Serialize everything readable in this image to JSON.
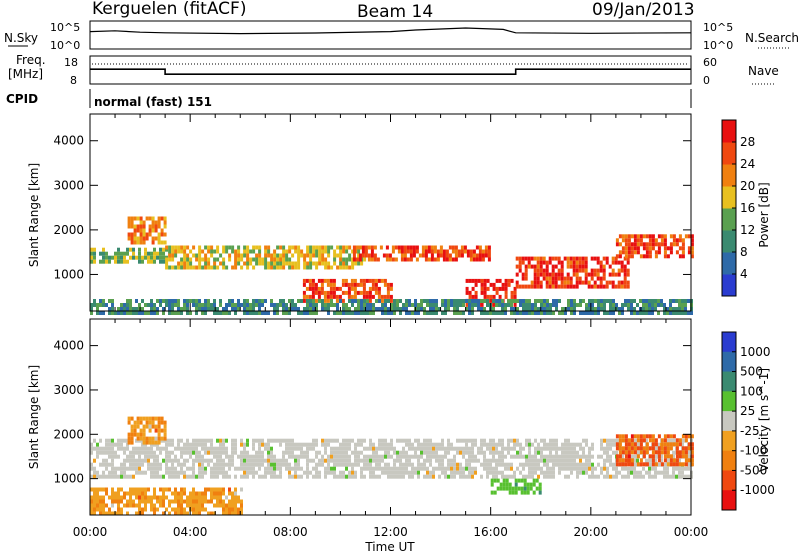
{
  "header": {
    "station": "Kerguelen (fitACF)",
    "beam": "Beam 14",
    "date": "09/Jan/2013"
  },
  "side_labels": {
    "nsky": "N.Sky",
    "nsky_top": "10^5",
    "nsky_bottom": "10^0",
    "nsearch": "N.Search",
    "nsearch_top": "10^5",
    "nsearch_bottom": "10^0",
    "freq": "Freq.",
    "freq_unit": "[MHz]",
    "freq_top": "18",
    "freq_bottom": "8",
    "nave": "Nave",
    "nave_top": "60",
    "nave_bottom": "0",
    "cpid": "CPID",
    "cpid_value": "normal (fast) 151"
  },
  "chart_data": [
    {
      "type": "heatmap",
      "name": "power",
      "xlabel": "",
      "ylabel": "Slant Range [km]",
      "x_ticks": [
        "00:00",
        "04:00",
        "08:00",
        "12:00",
        "16:00",
        "20:00",
        "00:00"
      ],
      "xlim_hours": [
        0,
        24
      ],
      "y_ticks": [
        1000,
        2000,
        3000,
        4000
      ],
      "ylim": [
        180,
        4600
      ],
      "colorbar_label": "Power [dB]",
      "colorbar_ticks": [
        4,
        8,
        12,
        16,
        20,
        24,
        28
      ],
      "colorbar_range": [
        0,
        32
      ],
      "colors": [
        "#2a3cd0",
        "#2e6aa8",
        "#3a8a70",
        "#5aa050",
        "#e8c020",
        "#f08010",
        "#f04810",
        "#e81010"
      ],
      "bands": [
        {
          "from_hour": 0,
          "to_hour": 3,
          "range_km": [
            1300,
            1600
          ],
          "value_db": 14
        },
        {
          "from_hour": 1.5,
          "to_hour": 3,
          "range_km": [
            1700,
            2300
          ],
          "value_db": 22
        },
        {
          "from_hour": 3,
          "to_hour": 11,
          "range_km": [
            1150,
            1650
          ],
          "value_db": 18
        },
        {
          "from_hour": 8.5,
          "to_hour": 12,
          "range_km": [
            380,
            900
          ],
          "value_db": 26
        },
        {
          "from_hour": 10.5,
          "to_hour": 16,
          "range_km": [
            1300,
            1650
          ],
          "value_db": 26
        },
        {
          "from_hour": 15,
          "to_hour": 17,
          "range_km": [
            350,
            900
          ],
          "value_db": 30
        },
        {
          "from_hour": 17,
          "to_hour": 21.5,
          "range_km": [
            700,
            1400
          ],
          "value_db": 28
        },
        {
          "from_hour": 21,
          "to_hour": 24,
          "range_km": [
            1400,
            1900
          ],
          "value_db": 26
        },
        {
          "from_hour": 0,
          "to_hour": 24,
          "range_km": [
            180,
            450
          ],
          "value_db": 10
        }
      ]
    },
    {
      "type": "heatmap",
      "name": "velocity",
      "xlabel": "Time UT",
      "ylabel": "Slant Range [km]",
      "x_ticks": [
        "00:00",
        "04:00",
        "08:00",
        "12:00",
        "16:00",
        "20:00",
        "00:00"
      ],
      "xlim_hours": [
        0,
        24
      ],
      "y_ticks": [
        1000,
        2000,
        3000,
        4000
      ],
      "ylim": [
        180,
        4600
      ],
      "colorbar_label": "Velocity [m s^-1]",
      "colorbar_ticks": [
        "1000",
        "500",
        "100",
        "25",
        "-25",
        "-100",
        "-500",
        "-1000"
      ],
      "colors": [
        "#2a3cd0",
        "#2e6aa8",
        "#3a8a70",
        "#58c030",
        "#c8c8c0",
        "#f0a020",
        "#f08010",
        "#f04810",
        "#e81010"
      ],
      "bands": [
        {
          "from_hour": 0,
          "to_hour": 24,
          "range_km": [
            1000,
            1900
          ],
          "value": 0
        },
        {
          "from_hour": 1.5,
          "to_hour": 3,
          "range_km": [
            1800,
            2400
          ],
          "value": -150
        },
        {
          "from_hour": 16,
          "to_hour": 18,
          "range_km": [
            700,
            1000
          ],
          "value": 80
        },
        {
          "from_hour": 21,
          "to_hour": 24,
          "range_km": [
            1300,
            2000
          ],
          "value": -400
        },
        {
          "from_hour": 0,
          "to_hour": 6,
          "range_km": [
            200,
            800
          ],
          "value": -120
        }
      ]
    }
  ],
  "summary_series": {
    "nsky_profile": [
      [
        0,
        0.62
      ],
      [
        1,
        0.65
      ],
      [
        2,
        0.6
      ],
      [
        3,
        0.58
      ],
      [
        6,
        0.55
      ],
      [
        9,
        0.57
      ],
      [
        12,
        0.62
      ],
      [
        13,
        0.68
      ],
      [
        15,
        0.75
      ],
      [
        16.5,
        0.7
      ],
      [
        17,
        0.58
      ],
      [
        20,
        0.56
      ],
      [
        24,
        0.58
      ]
    ],
    "freq_profile": [
      [
        0,
        13.3
      ],
      [
        3,
        13.3
      ],
      [
        3,
        11.5
      ],
      [
        17,
        11.5
      ],
      [
        17,
        13.3
      ],
      [
        24,
        13.3
      ]
    ]
  }
}
